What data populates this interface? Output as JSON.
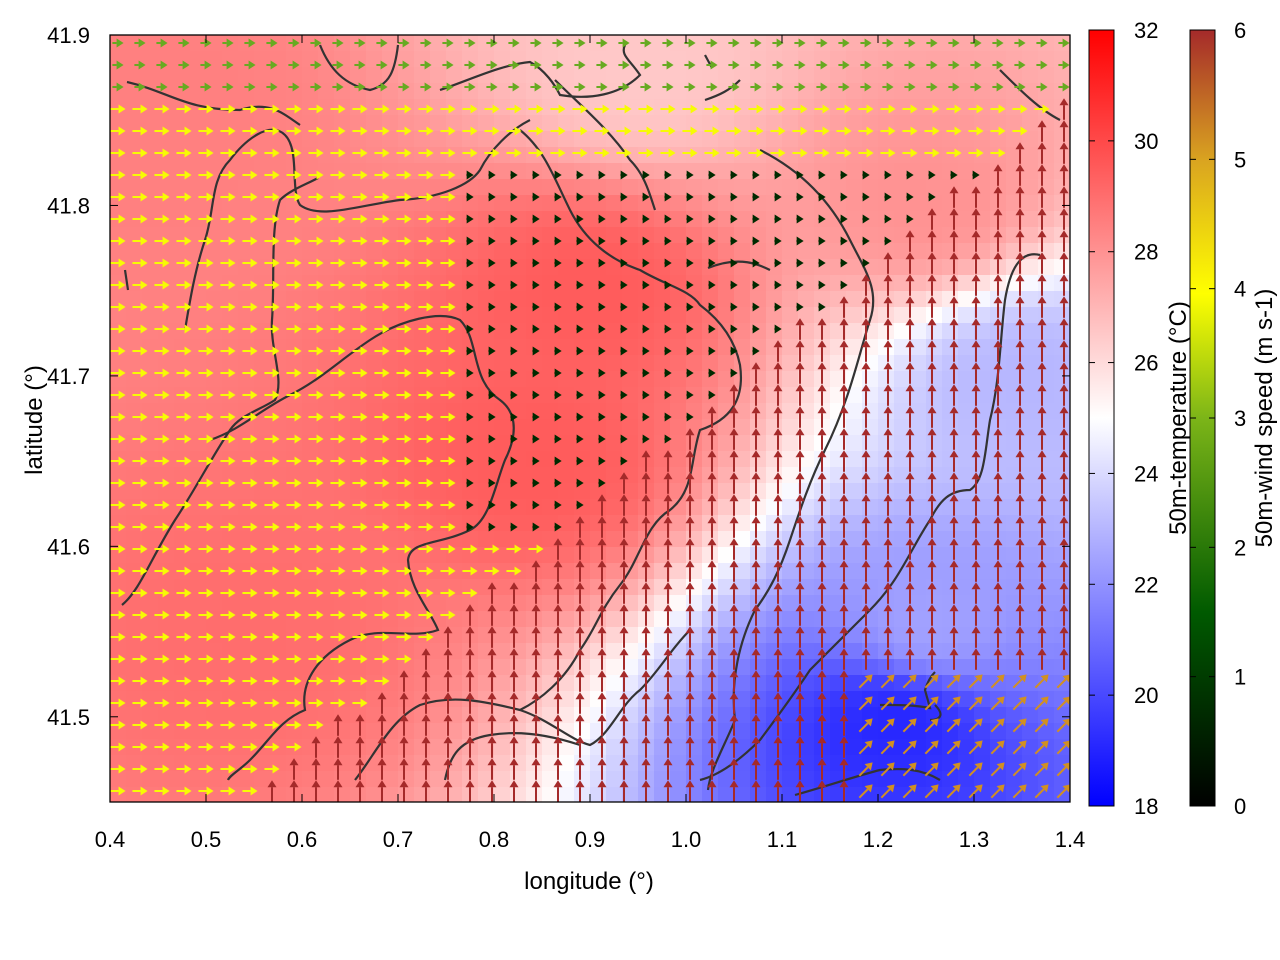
{
  "chart_data": {
    "type": "heatmap",
    "title": "",
    "xlabel": "longitude (°)",
    "ylabel": "latitude (°)",
    "xlim": [
      0.4,
      1.4
    ],
    "ylim": [
      41.45,
      41.9
    ],
    "x_ticks": [
      "0.4",
      "0.5",
      "0.6",
      "0.7",
      "0.8",
      "0.9",
      "1.0",
      "1.1",
      "1.2",
      "1.3",
      "1.4"
    ],
    "y_ticks": [
      "41.5",
      "41.6",
      "41.7",
      "41.8",
      "41.9"
    ],
    "grid": false,
    "layers": [
      {
        "name": "50m-temperature (°C)",
        "kind": "color field",
        "colorbar_label": "50m-temperature (°C)",
        "range": [
          18,
          32
        ],
        "ticks": [
          "18",
          "20",
          "22",
          "24",
          "26",
          "28",
          "30",
          "32"
        ],
        "colors": [
          "#0000ff",
          "#ffffff",
          "#ff0000"
        ],
        "regions": [
          {
            "lon": 0.9,
            "lat": 41.75,
            "value": 29.5
          },
          {
            "lon": 0.85,
            "lat": 41.65,
            "value": 29.5
          },
          {
            "lon": 0.55,
            "lat": 41.55,
            "value": 29.0
          },
          {
            "lon": 0.45,
            "lat": 41.85,
            "value": 28.5
          },
          {
            "lon": 0.95,
            "lat": 41.88,
            "value": 26.5
          },
          {
            "lon": 1.25,
            "lat": 41.8,
            "value": 28.0
          },
          {
            "lon": 1.35,
            "lat": 41.7,
            "value": 23.0
          },
          {
            "lon": 1.25,
            "lat": 41.55,
            "value": 22.5
          },
          {
            "lon": 1.22,
            "lat": 41.5,
            "value": 19.0
          }
        ]
      },
      {
        "name": "50m-wind speed (m s-1)",
        "kind": "vector field",
        "colorbar_label": "50m-wind speed (m s-1)",
        "range": [
          0,
          6
        ],
        "ticks": [
          "0",
          "1",
          "2",
          "3",
          "4",
          "5",
          "6"
        ],
        "colors": [
          "#000000",
          "#006400",
          "#9acd32",
          "#ffff00",
          "#daa520",
          "#a52a2a"
        ],
        "regions": [
          {
            "area": "north-west",
            "direction": "east",
            "speed": 3.5
          },
          {
            "area": "north strip",
            "direction": "east",
            "speed": 2.0
          },
          {
            "area": "central valley",
            "direction": "east",
            "speed": 0.5
          },
          {
            "area": "south and east",
            "direction": "north",
            "speed": 6.0
          },
          {
            "area": "south-east coast",
            "direction": "north-east",
            "speed": 5.0
          }
        ]
      },
      {
        "name": "coastline / topography contours",
        "kind": "line",
        "color": "#333333"
      }
    ],
    "colors": {
      "temperature_low": "#0000ff",
      "temperature_mid": "#ffffff",
      "temperature_high": "#ff0000",
      "wind_max": "#a52a2a",
      "contour": "#333333"
    }
  }
}
